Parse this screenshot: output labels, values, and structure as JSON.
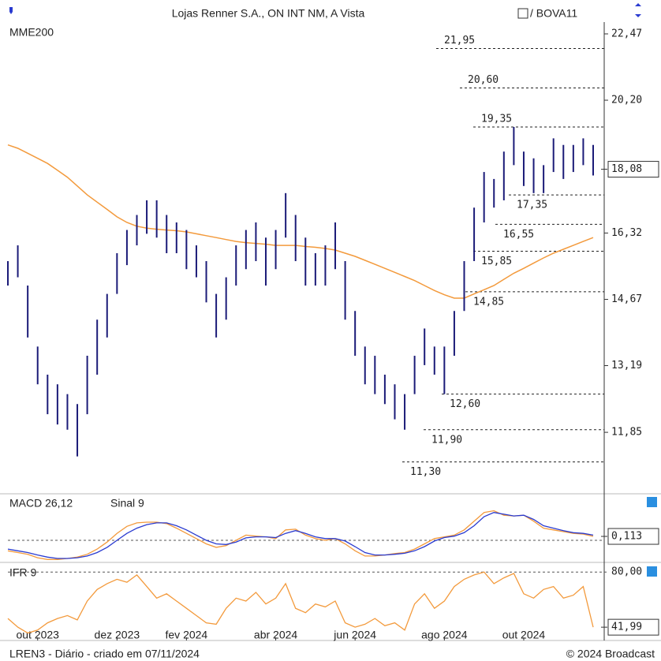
{
  "chart_data": [
    {
      "type": "ohlc",
      "title": "Lojas Renner S.A., ON  INT NM, A Vista",
      "compare": "/ BOVA11",
      "scale": "log",
      "bar_color": "#1b1b78",
      "categories": [
        null,
        null,
        null,
        "out 2023",
        null,
        null,
        null,
        null,
        null,
        null,
        null,
        "dez 2023",
        null,
        null,
        null,
        null,
        null,
        null,
        "fev 2024",
        null,
        null,
        null,
        null,
        null,
        null,
        null,
        null,
        "abr 2024",
        null,
        null,
        null,
        null,
        null,
        null,
        null,
        "jun 2024",
        null,
        null,
        null,
        null,
        null,
        null,
        null,
        null,
        "ago 2024",
        null,
        null,
        null,
        null,
        null,
        null,
        null,
        "out 2024",
        null,
        null,
        null,
        null,
        null,
        null,
        null
      ],
      "high": [
        15.6,
        16.0,
        15.0,
        13.6,
        13.0,
        12.8,
        12.6,
        12.4,
        13.4,
        14.2,
        14.8,
        15.8,
        16.4,
        16.8,
        17.2,
        17.2,
        16.8,
        16.6,
        16.4,
        16.0,
        15.6,
        14.8,
        15.2,
        16.0,
        16.4,
        16.6,
        16.2,
        16.4,
        17.4,
        16.8,
        16.2,
        15.8,
        16.0,
        16.6,
        15.6,
        14.4,
        13.6,
        13.4,
        13.0,
        12.8,
        12.6,
        13.4,
        14.0,
        13.6,
        13.6,
        14.4,
        15.6,
        17.0,
        18.0,
        17.8,
        18.6,
        19.35,
        18.6,
        18.4,
        18.2,
        19.0,
        18.8,
        18.8,
        19.0,
        18.8
      ],
      "low": [
        15.0,
        15.2,
        13.8,
        12.8,
        12.2,
        12.0,
        11.9,
        11.4,
        12.2,
        13.0,
        13.8,
        14.8,
        15.5,
        16.0,
        16.3,
        16.2,
        15.8,
        15.8,
        15.4,
        15.2,
        14.6,
        13.8,
        14.2,
        15.0,
        15.4,
        15.6,
        15.0,
        15.4,
        16.2,
        15.6,
        15.0,
        15.0,
        15.0,
        15.4,
        14.2,
        13.4,
        12.8,
        12.6,
        12.4,
        12.1,
        11.9,
        12.6,
        13.2,
        13.0,
        12.6,
        13.4,
        14.4,
        15.6,
        16.6,
        17.0,
        17.2,
        18.2,
        17.6,
        17.4,
        17.4,
        18.0,
        17.8,
        18.0,
        18.2,
        17.9
      ],
      "ma": {
        "name": "MME200",
        "color": "#f39a3c",
        "values": [
          18.8,
          18.7,
          18.55,
          18.4,
          18.25,
          18.05,
          17.85,
          17.6,
          17.35,
          17.15,
          16.95,
          16.75,
          16.6,
          16.5,
          16.45,
          16.42,
          16.4,
          16.38,
          16.35,
          16.3,
          16.25,
          16.2,
          16.15,
          16.1,
          16.07,
          16.05,
          16.03,
          16.0,
          16.0,
          16.0,
          15.97,
          15.95,
          15.92,
          15.88,
          15.8,
          15.72,
          15.62,
          15.52,
          15.42,
          15.32,
          15.22,
          15.12,
          15.0,
          14.88,
          14.78,
          14.7,
          14.7,
          14.8,
          14.9,
          15.0,
          15.15,
          15.3,
          15.42,
          15.55,
          15.68,
          15.8,
          15.9,
          16.0,
          16.1,
          16.2
        ]
      },
      "ylim": [
        10.75,
        22.9
      ],
      "yticks": [
        {
          "value": 11.85,
          "label": "11,85"
        },
        {
          "value": 13.19,
          "label": "13,19"
        },
        {
          "value": 14.67,
          "label": "14,67"
        },
        {
          "value": 16.32,
          "label": "16,32"
        },
        {
          "value": 20.2,
          "label": "20,20"
        },
        {
          "value": 22.47,
          "label": "22,47"
        }
      ],
      "last": {
        "value": 18.08,
        "label": "18,08"
      },
      "levels": [
        {
          "value": 21.95,
          "label": "21,95"
        },
        {
          "value": 20.6,
          "label": "20,60"
        },
        {
          "value": 19.35,
          "label": "19,35"
        },
        {
          "value": 17.35,
          "label": "17,35"
        },
        {
          "value": 16.55,
          "label": "16,55"
        },
        {
          "value": 15.85,
          "label": "15,85"
        },
        {
          "value": 14.85,
          "label": "14,85"
        },
        {
          "value": 12.6,
          "label": "12,60"
        },
        {
          "value": 11.9,
          "label": "11,90"
        },
        {
          "value": 11.3,
          "label": "11,30"
        }
      ]
    },
    {
      "type": "line",
      "ylim": [
        -0.61,
        1.29
      ],
      "zero": 0,
      "series": [
        {
          "name": "MACD 26,12",
          "color": "#f39a3c",
          "values": [
            -0.3,
            -0.35,
            -0.4,
            -0.5,
            -0.55,
            -0.55,
            -0.52,
            -0.48,
            -0.4,
            -0.25,
            -0.05,
            0.2,
            0.4,
            0.5,
            0.52,
            0.52,
            0.48,
            0.35,
            0.2,
            0.05,
            -0.1,
            -0.2,
            -0.15,
            0.0,
            0.15,
            0.12,
            0.1,
            0.05,
            0.3,
            0.32,
            0.15,
            0.05,
            0.0,
            0.05,
            -0.1,
            -0.3,
            -0.45,
            -0.45,
            -0.42,
            -0.38,
            -0.35,
            -0.25,
            -0.1,
            0.05,
            0.1,
            0.15,
            0.3,
            0.55,
            0.8,
            0.85,
            0.72,
            0.7,
            0.72,
            0.55,
            0.35,
            0.3,
            0.25,
            0.2,
            0.18,
            0.113
          ]
        },
        {
          "name": "Sinal 9",
          "color": "#2a3bd0",
          "values": [
            -0.25,
            -0.3,
            -0.35,
            -0.42,
            -0.48,
            -0.52,
            -0.52,
            -0.5,
            -0.45,
            -0.35,
            -0.2,
            0.0,
            0.2,
            0.35,
            0.45,
            0.5,
            0.5,
            0.42,
            0.3,
            0.15,
            0.0,
            -0.1,
            -0.12,
            -0.05,
            0.07,
            0.1,
            0.1,
            0.08,
            0.2,
            0.28,
            0.2,
            0.1,
            0.05,
            0.05,
            -0.02,
            -0.18,
            -0.35,
            -0.42,
            -0.42,
            -0.4,
            -0.37,
            -0.3,
            -0.18,
            -0.02,
            0.08,
            0.12,
            0.22,
            0.42,
            0.68,
            0.8,
            0.75,
            0.7,
            0.72,
            0.6,
            0.42,
            0.35,
            0.28,
            0.22,
            0.2,
            0.15
          ]
        }
      ],
      "last": {
        "value": 0.113,
        "label": "0,113"
      }
    },
    {
      "type": "line",
      "ylim": [
        35,
        85
      ],
      "yticks": [
        {
          "value": 80,
          "label": "80,00"
        }
      ],
      "series": [
        {
          "name": "IFR 9",
          "color": "#f39a3c",
          "values": [
            48,
            42,
            38,
            40,
            45,
            48,
            50,
            47,
            60,
            68,
            72,
            75,
            73,
            78,
            70,
            62,
            65,
            60,
            55,
            50,
            45,
            44,
            55,
            62,
            60,
            66,
            58,
            62,
            72,
            55,
            52,
            58,
            56,
            60,
            45,
            42,
            44,
            48,
            43,
            45,
            40,
            58,
            65,
            55,
            60,
            70,
            75,
            78,
            80,
            72,
            76,
            79,
            65,
            62,
            68,
            70,
            62,
            64,
            70,
            41.99
          ]
        }
      ],
      "last": {
        "value": 41.99,
        "label": "41,99"
      }
    }
  ],
  "footer": {
    "left": "LREN3 - Diário - criado em 07/11/2024",
    "right": "© 2024 Broadcast"
  }
}
